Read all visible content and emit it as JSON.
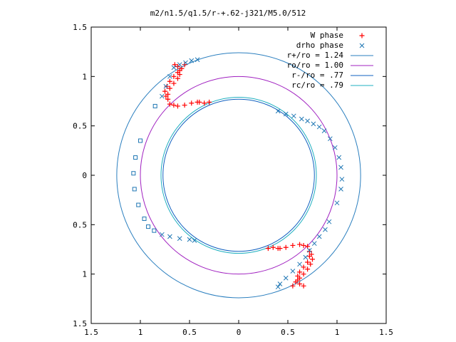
{
  "chart_data": {
    "type": "scatter",
    "title": "m2/n1.5/q1.5/r-+.62-j321/M5.0/512",
    "xlim": [
      -1.5,
      1.5
    ],
    "ylim": [
      -1.5,
      1.5
    ],
    "xticks": [
      -1.5,
      -1,
      -0.5,
      0,
      0.5,
      1,
      1.5
    ],
    "yticks": [
      -1.5,
      -1,
      -0.5,
      0,
      0.5,
      1,
      1.5
    ],
    "xtick_labels": [
      "1.5",
      "1",
      "0.5",
      "0",
      "0.5",
      "1",
      "1.5"
    ],
    "ytick_labels": [
      "1.5",
      "1",
      "0.5",
      "0",
      "0.5",
      "1",
      "1.5"
    ],
    "grid": false,
    "legend_position": "top-right",
    "legend": [
      {
        "label": "W phase",
        "marker": "+",
        "color": "#ff0000"
      },
      {
        "label": "drho phase",
        "marker": "x",
        "color": "#1f77b4"
      },
      {
        "label": "r+/ro = 1.24",
        "line": true,
        "color": "#2b7fbf"
      },
      {
        "label": "ro/ro = 1.00",
        "line": true,
        "color": "#a020c0"
      },
      {
        "label": "r-/ro = .77",
        "line": true,
        "color": "#1060c0"
      },
      {
        "label": "rc/ro = .79",
        "line": true,
        "color": "#20b0c0"
      }
    ],
    "circles": [
      {
        "name": "r+/ro = 1.24",
        "r": 1.24,
        "color": "#2b7fbf"
      },
      {
        "name": "ro/ro = 1.00",
        "r": 1.0,
        "color": "#a020c0"
      },
      {
        "name": "r-/ro = .77",
        "r": 0.77,
        "color": "#1060c0"
      },
      {
        "name": "rc/ro = .79",
        "r": 0.79,
        "color": "#20b0c0"
      }
    ],
    "series": [
      {
        "name": "W phase",
        "marker": "+",
        "color": "#ff0000",
        "points": [
          [
            -0.65,
            1.12
          ],
          [
            -0.62,
            1.1
          ],
          [
            -0.6,
            1.06
          ],
          [
            -0.6,
            1.02
          ],
          [
            -0.62,
            0.98
          ],
          [
            -0.66,
            0.93
          ],
          [
            -0.7,
            0.88
          ],
          [
            -0.72,
            0.82
          ],
          [
            -0.72,
            0.77
          ],
          [
            -0.7,
            0.72
          ],
          [
            -0.62,
            0.7
          ],
          [
            -0.55,
            0.71
          ],
          [
            -0.48,
            0.73
          ],
          [
            -0.4,
            0.74
          ],
          [
            -0.3,
            0.74
          ],
          [
            -0.55,
            1.12
          ],
          [
            -0.58,
            1.08
          ],
          [
            -0.62,
            1.04
          ],
          [
            -0.66,
            1.0
          ],
          [
            -0.7,
            0.95
          ],
          [
            -0.73,
            0.9
          ],
          [
            -0.75,
            0.85
          ],
          [
            -0.74,
            0.8
          ],
          [
            -0.66,
            0.71
          ],
          [
            -0.42,
            0.74
          ],
          [
            -0.35,
            0.73
          ],
          [
            0.66,
            -1.12
          ],
          [
            0.62,
            -1.1
          ],
          [
            0.6,
            -1.06
          ],
          [
            0.6,
            -1.02
          ],
          [
            0.62,
            -0.98
          ],
          [
            0.66,
            -0.93
          ],
          [
            0.7,
            -0.88
          ],
          [
            0.72,
            -0.82
          ],
          [
            0.72,
            -0.77
          ],
          [
            0.7,
            -0.72
          ],
          [
            0.62,
            -0.7
          ],
          [
            0.55,
            -0.71
          ],
          [
            0.48,
            -0.73
          ],
          [
            0.4,
            -0.74
          ],
          [
            0.3,
            -0.74
          ],
          [
            0.55,
            -1.12
          ],
          [
            0.58,
            -1.08
          ],
          [
            0.62,
            -1.04
          ],
          [
            0.66,
            -1.0
          ],
          [
            0.7,
            -0.95
          ],
          [
            0.73,
            -0.9
          ],
          [
            0.75,
            -0.85
          ],
          [
            0.74,
            -0.8
          ],
          [
            0.66,
            -0.71
          ],
          [
            0.42,
            -0.74
          ],
          [
            0.35,
            -0.73
          ]
        ]
      },
      {
        "name": "drho phase",
        "marker": "x",
        "color": "#1f77b4",
        "points": [
          [
            0.4,
            0.65
          ],
          [
            0.48,
            0.62
          ],
          [
            0.56,
            0.6
          ],
          [
            0.64,
            0.57
          ],
          [
            0.7,
            0.55
          ],
          [
            0.76,
            0.52
          ],
          [
            0.82,
            0.49
          ],
          [
            0.87,
            0.45
          ],
          [
            0.93,
            0.37
          ],
          [
            0.98,
            0.28
          ],
          [
            1.02,
            0.18
          ],
          [
            1.04,
            0.08
          ],
          [
            1.05,
            -0.04
          ],
          [
            1.04,
            -0.14
          ],
          [
            1.0,
            -0.28
          ],
          [
            0.92,
            -0.47
          ],
          [
            0.88,
            -0.55
          ],
          [
            0.82,
            -0.62
          ],
          [
            0.77,
            -0.69
          ],
          [
            0.72,
            -0.76
          ],
          [
            0.68,
            -0.83
          ],
          [
            0.62,
            -0.9
          ],
          [
            0.55,
            -0.97
          ],
          [
            0.48,
            -1.04
          ],
          [
            0.42,
            -1.1
          ],
          [
            0.4,
            -1.13
          ],
          [
            -0.66,
            1.09
          ],
          [
            -0.6,
            1.12
          ],
          [
            -0.54,
            1.14
          ],
          [
            -0.48,
            1.16
          ],
          [
            -0.42,
            1.17
          ],
          [
            -0.7,
            1.0
          ],
          [
            -0.74,
            0.9
          ],
          [
            -0.78,
            0.8
          ],
          [
            -0.85,
            0.7
          ],
          [
            -1.0,
            0.35
          ],
          [
            -1.05,
            0.18
          ],
          [
            -1.07,
            0.02
          ],
          [
            -1.06,
            -0.14
          ],
          [
            -1.02,
            -0.3
          ],
          [
            -0.96,
            -0.44
          ],
          [
            -0.92,
            -0.52
          ],
          [
            -0.86,
            -0.56
          ],
          [
            -0.78,
            -0.6
          ],
          [
            -0.7,
            -0.62
          ],
          [
            -0.6,
            -0.64
          ],
          [
            -0.5,
            -0.65
          ],
          [
            -0.45,
            -0.66
          ]
        ]
      }
    ]
  }
}
